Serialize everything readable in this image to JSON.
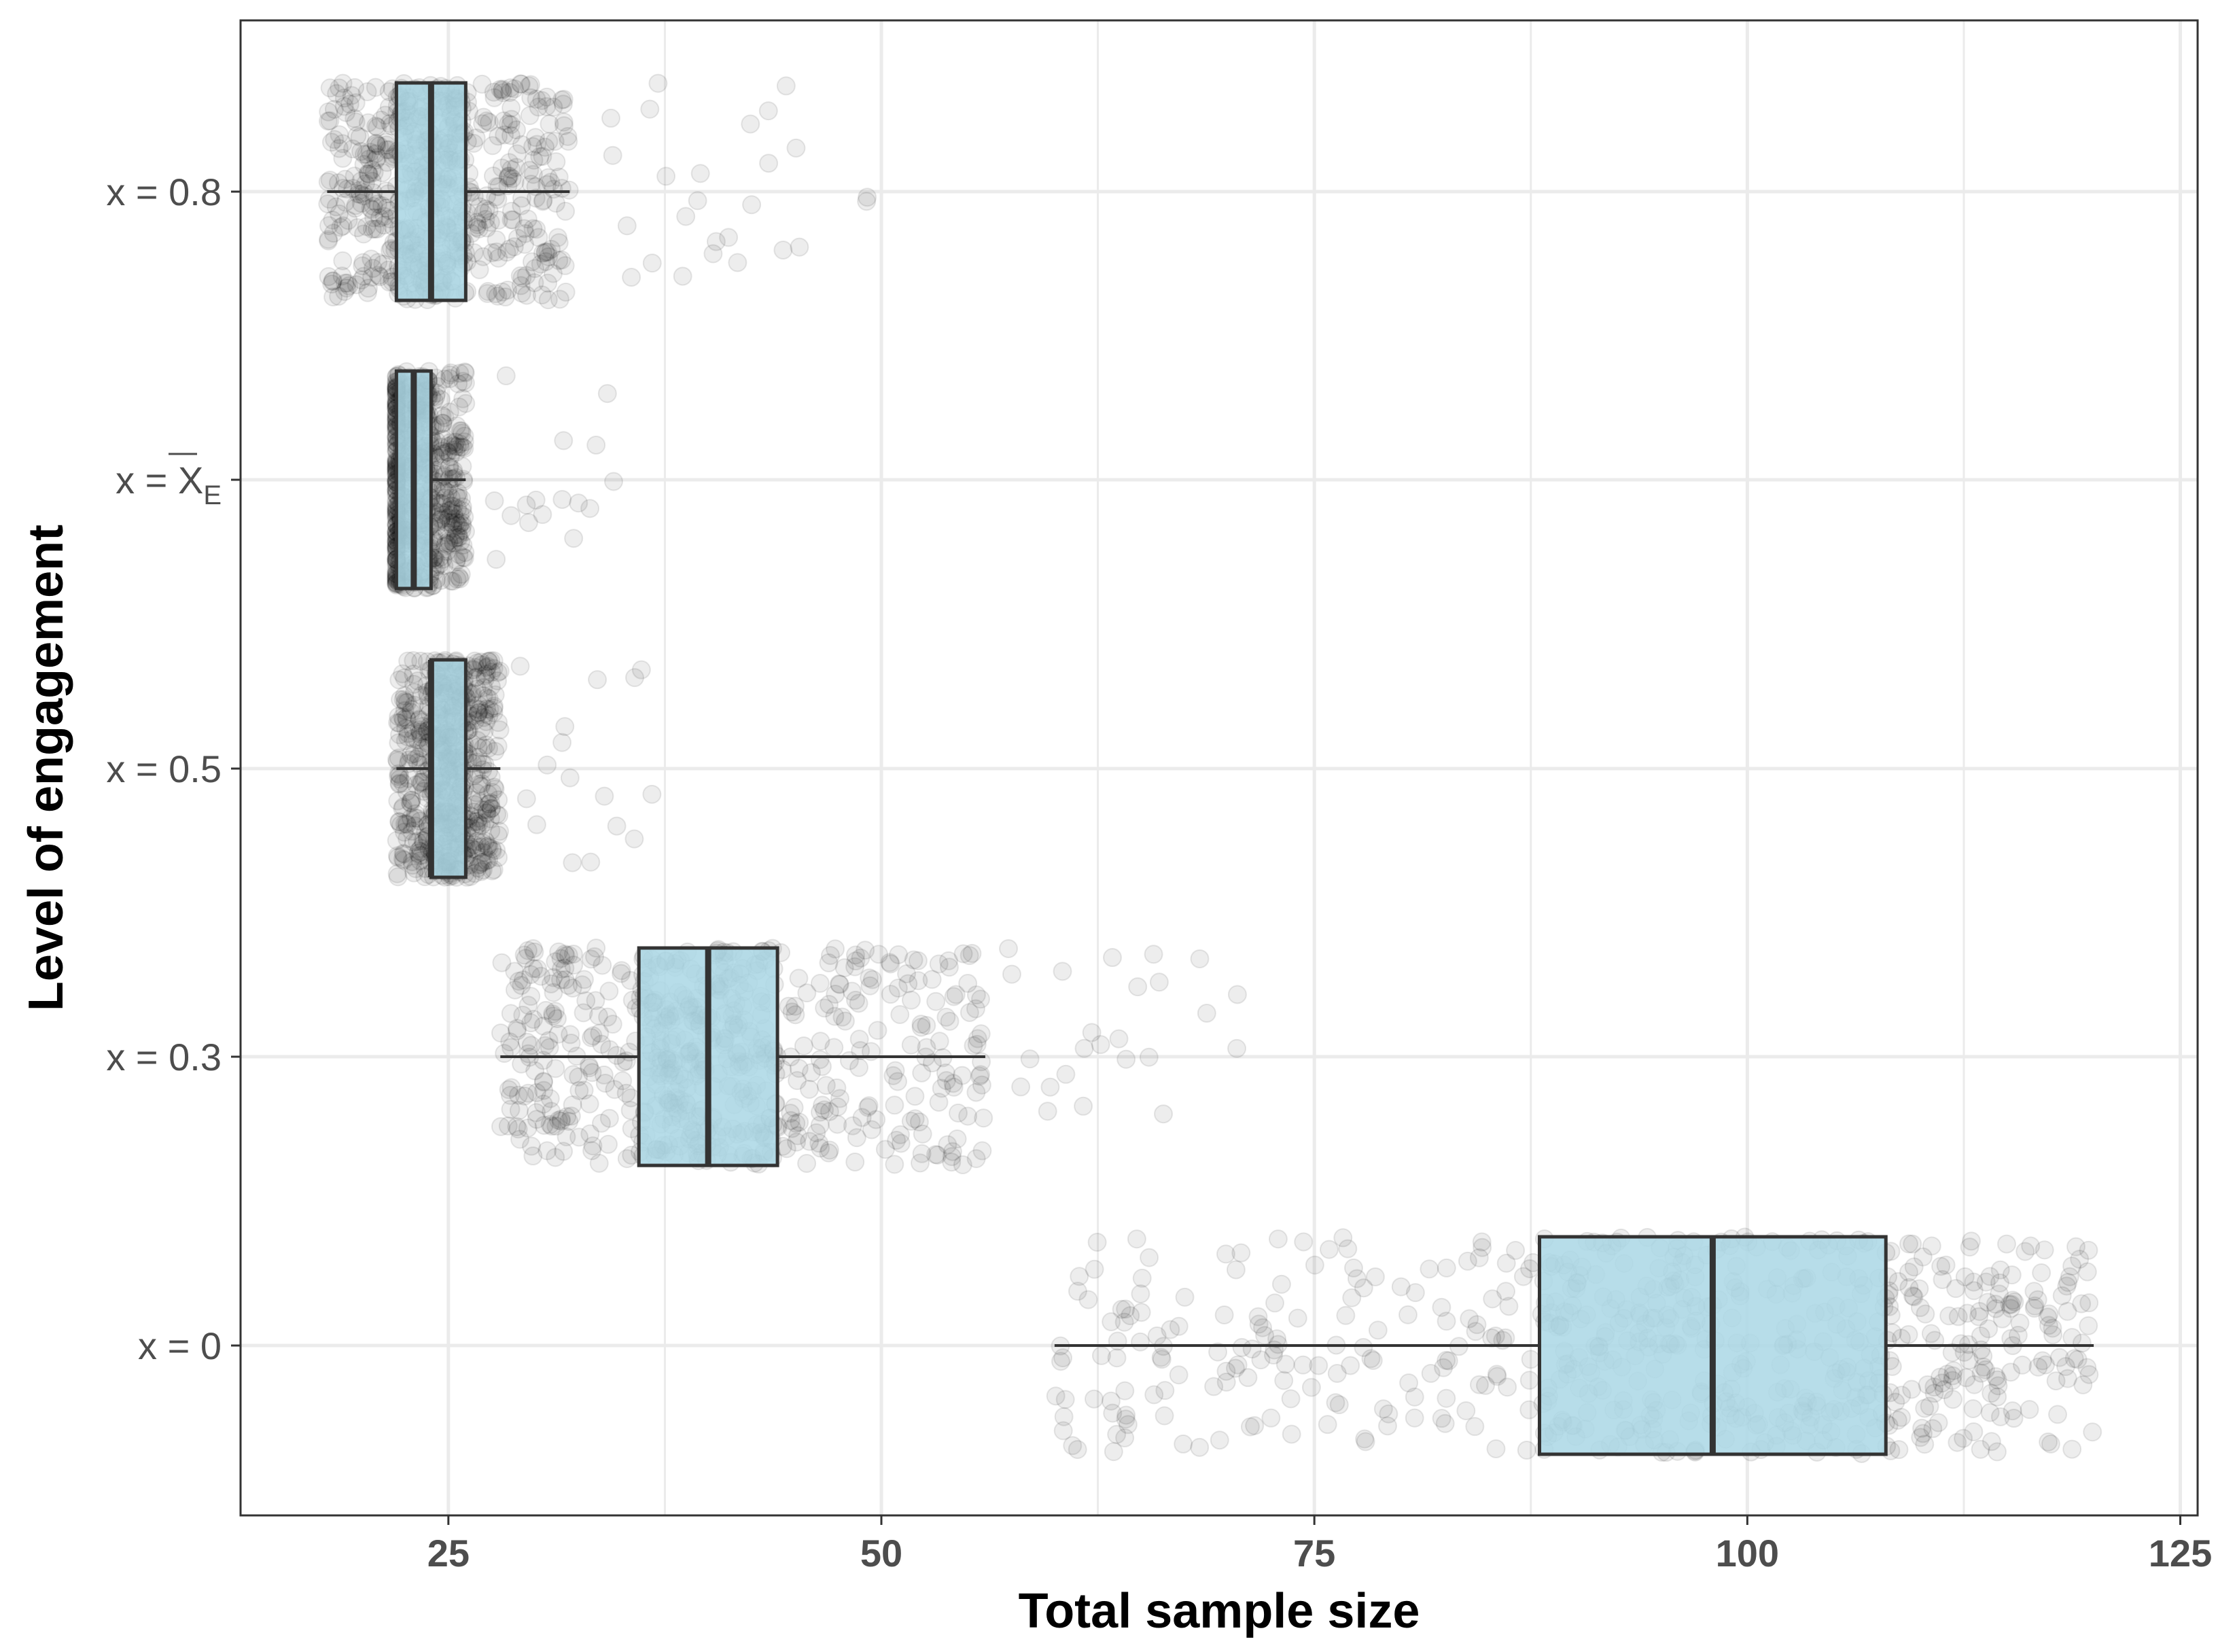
{
  "chart_data": {
    "type": "boxplot",
    "orientation": "horizontal",
    "title": "",
    "xlabel": "Total sample size",
    "ylabel": "Level of engagement",
    "xlim": [
      13,
      126
    ],
    "x_ticks": [
      25,
      50,
      75,
      100,
      125
    ],
    "grid": true,
    "jitter_points": true,
    "colors": {
      "box_fill": "#add8e6",
      "box_stroke": "#333333",
      "point": "#000000",
      "grid": "#ebebeb",
      "panel_border": "#333333"
    },
    "categories": [
      {
        "label_prefix": "x = ",
        "label_value": "0.8",
        "min": 18,
        "q1": 22,
        "median": 24,
        "q3": 26,
        "max": 32,
        "outliers": [
          34,
          35,
          36,
          37,
          38,
          39,
          40,
          41,
          42,
          43,
          44,
          45,
          49
        ]
      },
      {
        "label_prefix": "x = ",
        "label_value": "X",
        "label_bar": true,
        "label_sub": "E",
        "min": 22,
        "q1": 22,
        "median": 23,
        "q3": 24,
        "max": 26,
        "outliers": [
          27,
          28,
          29,
          30,
          31,
          32,
          33,
          34
        ]
      },
      {
        "label_prefix": "x = ",
        "label_value": "0.5",
        "min": 22,
        "q1": 24,
        "median": 24,
        "q3": 26,
        "max": 28,
        "outliers": [
          29,
          30,
          31,
          32,
          33,
          34,
          35,
          36
        ]
      },
      {
        "label_prefix": "x = ",
        "label_value": "0.3",
        "min": 28,
        "q1": 36,
        "median": 40,
        "q3": 44,
        "max": 56,
        "outliers": [
          57,
          58,
          59,
          60,
          61,
          62,
          63,
          64,
          65,
          66,
          68,
          70
        ]
      },
      {
        "label_prefix": "x = ",
        "label_value": "0",
        "min": 60,
        "q1": 88,
        "median": 98,
        "q3": 108,
        "max": 120,
        "outliers": []
      }
    ]
  }
}
